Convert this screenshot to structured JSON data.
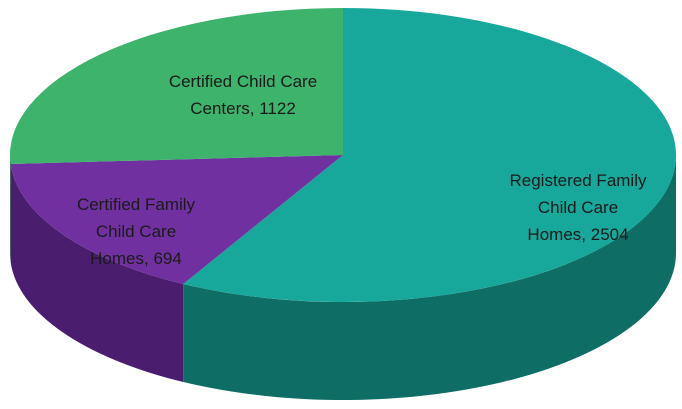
{
  "chart_data": {
    "type": "pie",
    "pie_3d": true,
    "categories": [
      "Registered Family Child Care Homes",
      "Certified Family Child Care Homes",
      "Certified Child Care Centers"
    ],
    "values": [
      2504,
      694,
      1122
    ],
    "colors": [
      "#17a89b",
      "#7030a0",
      "#3db36b"
    ],
    "side_colors": [
      "#0e6e65",
      "#4b1d6e",
      "#267a45"
    ],
    "label_separator": ","
  }
}
